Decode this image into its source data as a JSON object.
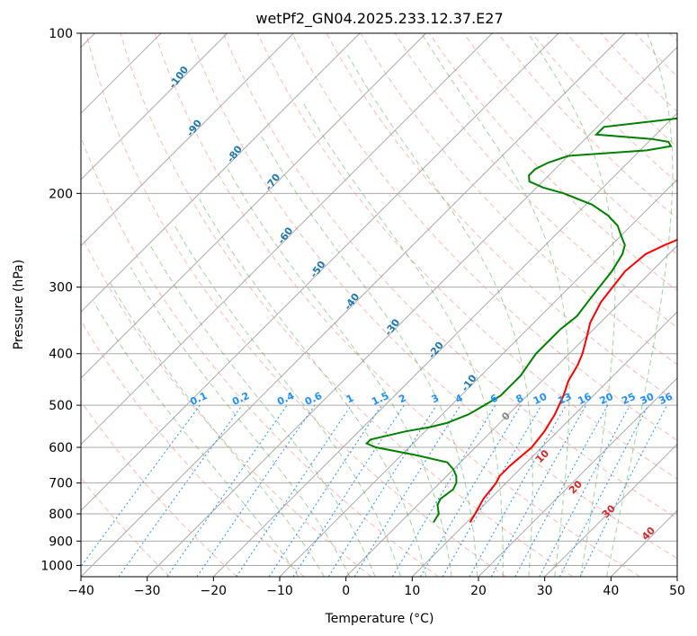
{
  "chart_data": {
    "type": "line",
    "subtype": "skew-T log-P diagram",
    "title": "wetPf2_GN04.2025.233.12.37.E27",
    "xlabel": "Temperature (°C)",
    "ylabel": "Pressure (hPa)",
    "xlim": [
      -40,
      50
    ],
    "ylim": [
      1050,
      100
    ],
    "y_scale": "log",
    "x_ticks": [
      -40,
      -30,
      -20,
      -10,
      0,
      10,
      20,
      30,
      40,
      50
    ],
    "y_ticks": [
      100,
      200,
      300,
      400,
      500,
      600,
      700,
      800,
      900,
      1000
    ],
    "grid": true,
    "colors": {
      "temperature": "#ff0000",
      "dewpoint": "#008000",
      "isotherm_label": "#1f77b4",
      "mixing_ratio": "#1e90ff",
      "dry_adiabat": "#fa8072",
      "moist_adiabat": "#2ca02c",
      "theta_e_label": "#d62728",
      "grid": "#aaaaaa"
    },
    "series": [
      {
        "name": "",
        "role": "temperature",
        "pressure": [
          830,
          800,
          750,
          700,
          680,
          650,
          600,
          560,
          520,
          480,
          450,
          420,
          400,
          370,
          350,
          320,
          300,
          280,
          260,
          250,
          240,
          230,
          220,
          210,
          200,
          185,
          170,
          160,
          150,
          140,
          130,
          120,
          110,
          100
        ],
        "temperature": [
          10.5,
          10,
          9,
          8.5,
          8,
          8,
          8.5,
          8,
          7,
          5.5,
          4,
          3,
          2,
          0,
          -1.5,
          -3,
          -3.5,
          -4,
          -3.5,
          -2,
          0,
          2.5,
          5,
          7,
          8.5,
          10.5,
          13,
          15,
          16.5,
          18,
          21,
          24,
          28,
          32.5
        ]
      },
      {
        "name": "",
        "role": "dewpoint",
        "pressure": [
          830,
          800,
          770,
          750,
          720,
          700,
          680,
          660,
          640,
          620,
          600,
          590,
          580,
          570,
          560,
          550,
          540,
          520,
          500,
          480,
          460,
          440,
          420,
          400,
          380,
          360,
          340,
          320,
          300,
          280,
          260,
          250,
          240,
          230,
          220,
          210,
          200,
          195,
          190,
          185,
          180,
          175,
          170,
          166,
          163,
          160,
          158,
          155,
          150,
          145,
          140,
          135,
          130,
          120,
          110,
          100
        ],
        "temperature": [
          5,
          4.5,
          3,
          2.5,
          3,
          2.5,
          1.5,
          0,
          -2,
          -8,
          -15,
          -17,
          -17,
          -15,
          -13,
          -10,
          -8,
          -6,
          -5,
          -4,
          -4,
          -4,
          -4.5,
          -5,
          -5,
          -5,
          -4.5,
          -5,
          -5.5,
          -6,
          -7,
          -8,
          -10,
          -12,
          -15,
          -19,
          -25,
          -29,
          -32,
          -33,
          -33,
          -32,
          -30,
          -19,
          -16,
          -17,
          -20,
          -29,
          -29,
          -20,
          -12,
          -10,
          -7,
          -3,
          1,
          5
        ]
      }
    ],
    "isotherm_labels": [
      "-100",
      "-90",
      "-80",
      "-70",
      "-60",
      "-50",
      "-40",
      "-30",
      "-20",
      "-10"
    ],
    "mixing_ratio_labels": [
      "0.1",
      "0.2",
      "0.4",
      "0.6",
      "1",
      "1.5",
      "2",
      "3",
      "4",
      "6",
      "8",
      "10",
      "13",
      "16",
      "20",
      "25",
      "30",
      "36"
    ],
    "theta_e_labels": [
      "0",
      "10",
      "20",
      "30",
      "40"
    ]
  }
}
